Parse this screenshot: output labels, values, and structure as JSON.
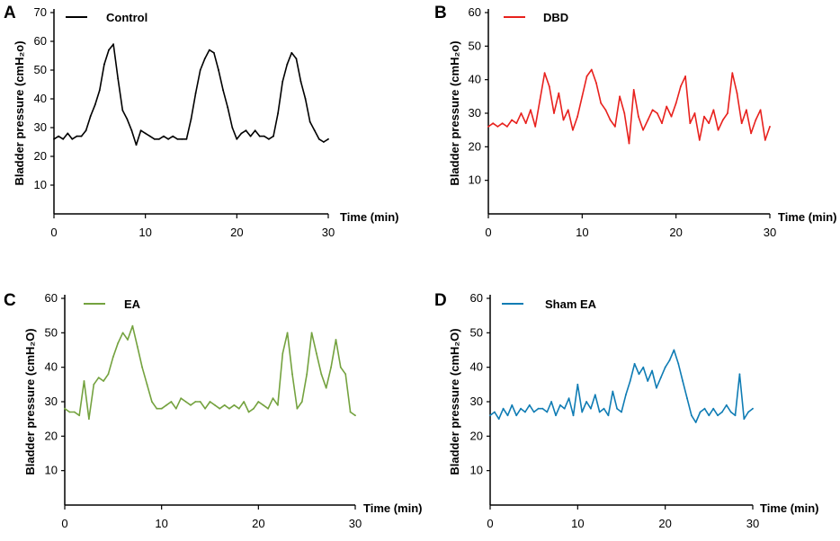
{
  "chart_data": [
    {
      "panel": "A",
      "type": "line",
      "legend": "Control",
      "color": "#000000",
      "xlabel": "Time (min)",
      "ylabel": "Bladder pressure (cmH₂o)",
      "xlim": [
        0,
        30
      ],
      "ylim": [
        0,
        70
      ],
      "xticks": [
        "0",
        "10",
        "20",
        "30"
      ],
      "yticks": [
        "10",
        "20",
        "30",
        "40",
        "50",
        "60",
        "70"
      ],
      "x": [
        0,
        0.5,
        1,
        1.5,
        2,
        2.5,
        3,
        3.5,
        4,
        4.5,
        5,
        5.5,
        6,
        6.5,
        7,
        7.5,
        8,
        8.5,
        9,
        9.5,
        10,
        10.5,
        11,
        11.5,
        12,
        12.5,
        13,
        13.5,
        14,
        14.5,
        15,
        15.5,
        16,
        16.5,
        17,
        17.5,
        18,
        18.5,
        19,
        19.5,
        20,
        20.5,
        21,
        21.5,
        22,
        22.5,
        23,
        23.5,
        24,
        24.5,
        25,
        25.5,
        26,
        26.5,
        27,
        27.5,
        28,
        28.5,
        29,
        29.5,
        30
      ],
      "y": [
        26,
        27,
        26,
        28,
        26,
        27,
        27,
        29,
        34,
        38,
        43,
        52,
        57,
        59,
        47,
        36,
        33,
        29,
        24,
        29,
        28,
        27,
        26,
        26,
        27,
        26,
        27,
        26,
        26,
        26,
        33,
        42,
        50,
        54,
        57,
        56,
        50,
        43,
        37,
        30,
        26,
        28,
        29,
        27,
        29,
        27,
        27,
        26,
        27,
        35,
        46,
        52,
        56,
        54,
        46,
        40,
        32,
        29,
        26,
        25,
        26
      ]
    },
    {
      "panel": "B",
      "type": "line",
      "legend": "DBD",
      "color": "#e8211d",
      "xlabel": "Time (min)",
      "ylabel": "Bladder pressure (cmH₂o)",
      "xlim": [
        0,
        30
      ],
      "ylim": [
        0,
        60
      ],
      "xticks": [
        "0",
        "10",
        "20",
        "30"
      ],
      "yticks": [
        "10",
        "20",
        "30",
        "40",
        "50",
        "60"
      ],
      "x": [
        0,
        0.5,
        1,
        1.5,
        2,
        2.5,
        3,
        3.5,
        4,
        4.5,
        5,
        5.5,
        6,
        6.5,
        7,
        7.5,
        8,
        8.5,
        9,
        9.5,
        10,
        10.5,
        11,
        11.5,
        12,
        12.5,
        13,
        13.5,
        14,
        14.5,
        15,
        15.5,
        16,
        16.5,
        17,
        17.5,
        18,
        18.5,
        19,
        19.5,
        20,
        20.5,
        21,
        21.5,
        22,
        22.5,
        23,
        23.5,
        24,
        24.5,
        25,
        25.5,
        26,
        26.5,
        27,
        27.5,
        28,
        28.5,
        29,
        29.5,
        30
      ],
      "y": [
        26,
        27,
        26,
        27,
        26,
        28,
        27,
        30,
        27,
        31,
        26,
        34,
        42,
        38,
        30,
        36,
        28,
        31,
        25,
        29,
        35,
        41,
        43,
        39,
        33,
        31,
        28,
        26,
        35,
        30,
        21,
        37,
        29,
        25,
        28,
        31,
        30,
        27,
        32,
        29,
        33,
        38,
        41,
        27,
        30,
        22,
        29,
        27,
        31,
        25,
        28,
        30,
        42,
        36,
        27,
        31,
        24,
        28,
        31,
        22,
        26
      ]
    },
    {
      "panel": "C",
      "type": "line",
      "legend": "EA",
      "color": "#74a23f",
      "xlabel": "Time (min)",
      "ylabel": "Bladder pressure (cmH₂O)",
      "xlim": [
        0,
        30
      ],
      "ylim": [
        0,
        60
      ],
      "xticks": [
        "0",
        "10",
        "20",
        "30"
      ],
      "yticks": [
        "10",
        "20",
        "30",
        "40",
        "50",
        "60"
      ],
      "x": [
        0,
        0.5,
        1,
        1.5,
        2,
        2.5,
        3,
        3.5,
        4,
        4.5,
        5,
        5.5,
        6,
        6.5,
        7,
        7.5,
        8,
        8.5,
        9,
        9.5,
        10,
        10.5,
        11,
        11.5,
        12,
        12.5,
        13,
        13.5,
        14,
        14.5,
        15,
        15.5,
        16,
        16.5,
        17,
        17.5,
        18,
        18.5,
        19,
        19.5,
        20,
        20.5,
        21,
        21.5,
        22,
        22.5,
        23,
        23.5,
        24,
        24.5,
        25,
        25.5,
        26,
        26.5,
        27,
        27.5,
        28,
        28.5,
        29,
        29.5,
        30
      ],
      "y": [
        28,
        27,
        27,
        26,
        36,
        25,
        35,
        37,
        36,
        38,
        43,
        47,
        50,
        48,
        52,
        46,
        40,
        35,
        30,
        28,
        28,
        29,
        30,
        28,
        31,
        30,
        29,
        30,
        30,
        28,
        30,
        29,
        28,
        29,
        28,
        29,
        28,
        30,
        27,
        28,
        30,
        29,
        28,
        31,
        29,
        44,
        50,
        38,
        28,
        30,
        38,
        50,
        44,
        38,
        34,
        40,
        48,
        40,
        38,
        27,
        26
      ]
    },
    {
      "panel": "D",
      "type": "line",
      "legend": "Sham EA",
      "color": "#0f7cb4",
      "xlabel": "Time (min)",
      "ylabel": "Bladder pressure (cmH₂O)",
      "xlim": [
        0,
        30
      ],
      "ylim": [
        0,
        60
      ],
      "xticks": [
        "0",
        "10",
        "20",
        "30"
      ],
      "yticks": [
        "10",
        "20",
        "30",
        "40",
        "50",
        "60"
      ],
      "x": [
        0,
        0.5,
        1,
        1.5,
        2,
        2.5,
        3,
        3.5,
        4,
        4.5,
        5,
        5.5,
        6,
        6.5,
        7,
        7.5,
        8,
        8.5,
        9,
        9.5,
        10,
        10.5,
        11,
        11.5,
        12,
        12.5,
        13,
        13.5,
        14,
        14.5,
        15,
        15.5,
        16,
        16.5,
        17,
        17.5,
        18,
        18.5,
        19,
        19.5,
        20,
        20.5,
        21,
        21.5,
        22,
        22.5,
        23,
        23.5,
        24,
        24.5,
        25,
        25.5,
        26,
        26.5,
        27,
        27.5,
        28,
        28.5,
        29,
        29.5,
        30
      ],
      "y": [
        26,
        27,
        25,
        28,
        26,
        29,
        26,
        28,
        27,
        29,
        27,
        28,
        28,
        27,
        30,
        26,
        29,
        28,
        31,
        26,
        35,
        27,
        30,
        28,
        32,
        27,
        28,
        26,
        33,
        28,
        27,
        32,
        36,
        41,
        38,
        40,
        36,
        39,
        34,
        37,
        40,
        42,
        45,
        41,
        36,
        31,
        26,
        24,
        27,
        28,
        26,
        28,
        26,
        27,
        29,
        27,
        26,
        38,
        25,
        27,
        28
      ]
    }
  ]
}
